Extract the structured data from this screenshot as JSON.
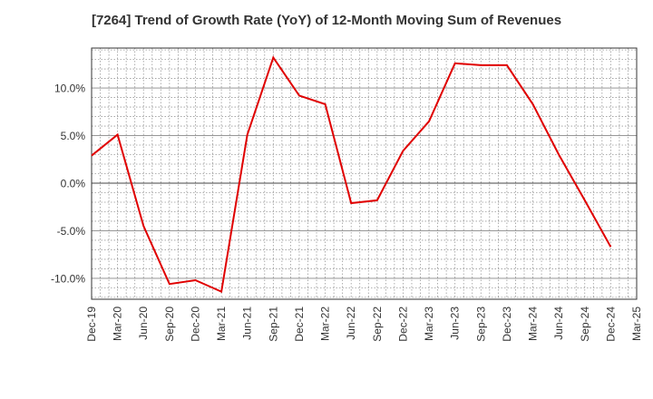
{
  "chart_data": {
    "type": "line",
    "title": "[7264]  Trend of Growth Rate (YoY) of 12-Month Moving Sum of Revenues",
    "xlabel": "",
    "ylabel": "",
    "categories": [
      "Dec-19",
      "Mar-20",
      "Jun-20",
      "Sep-20",
      "Dec-20",
      "Mar-21",
      "Jun-21",
      "Sep-21",
      "Dec-21",
      "Mar-22",
      "Jun-22",
      "Sep-22",
      "Dec-22",
      "Mar-23",
      "Jun-23",
      "Sep-23",
      "Dec-23",
      "Mar-24",
      "Jun-24",
      "Sep-24",
      "Dec-24",
      "Mar-25"
    ],
    "series": [
      {
        "color": "#e00000",
        "values": [
          2.9,
          5.1,
          -4.5,
          -10.6,
          -10.2,
          -11.4,
          5.1,
          13.2,
          9.2,
          8.3,
          -2.1,
          -1.8,
          3.4,
          6.5,
          12.6,
          12.4,
          12.4,
          8.3,
          3.0,
          -1.8,
          -6.7,
          null
        ]
      }
    ],
    "ylim": [
      -12.2,
      14.2
    ],
    "yticks": [
      10.0,
      5.0,
      0.0,
      -5.0,
      -10.0
    ],
    "ytick_labels": [
      "10.0%",
      "5.0%",
      "0.0%",
      "-5.0%",
      "-10.0%"
    ],
    "grid": true,
    "legend": "none"
  }
}
